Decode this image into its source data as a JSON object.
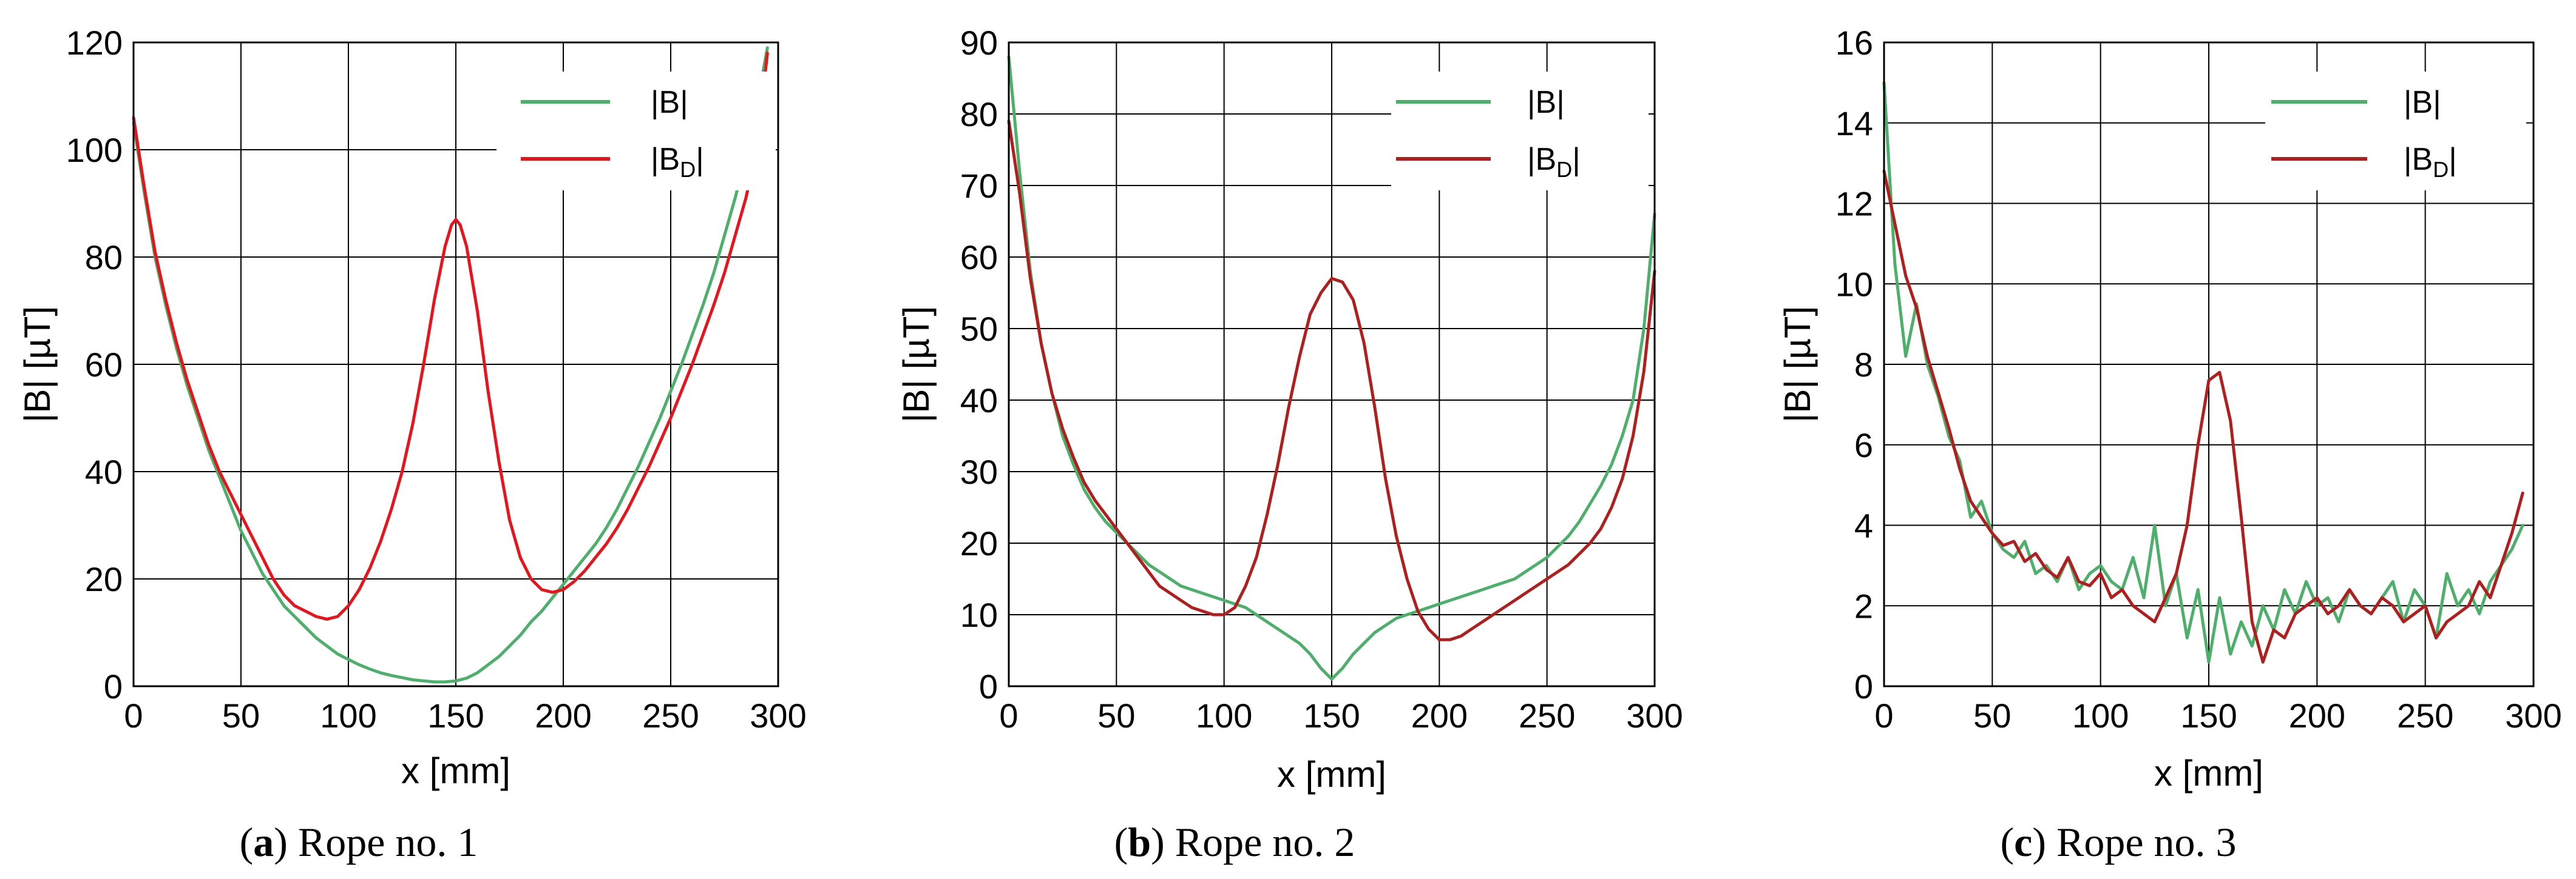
{
  "chart_data": [
    {
      "type": "line",
      "panel_label": "a",
      "caption": "Rope no. 1",
      "xlabel": "x [mm]",
      "ylabel": "|B| [µT]",
      "xlim": [
        0,
        300
      ],
      "ylim": [
        0,
        120
      ],
      "xticks": [
        0,
        50,
        100,
        150,
        200,
        250,
        300
      ],
      "yticks": [
        0,
        20,
        40,
        60,
        80,
        100,
        120
      ],
      "grid": true,
      "legend_position": "top-right",
      "series": [
        {
          "name": "|B|",
          "legend_main": "|B|",
          "legend_sub": "",
          "color": "#4caf6a",
          "x": [
            0,
            5,
            10,
            15,
            20,
            25,
            30,
            35,
            40,
            45,
            50,
            55,
            60,
            65,
            70,
            75,
            80,
            85,
            90,
            95,
            100,
            105,
            110,
            115,
            120,
            125,
            130,
            135,
            140,
            145,
            150,
            155,
            160,
            165,
            170,
            175,
            180,
            185,
            190,
            195,
            200,
            205,
            210,
            215,
            220,
            225,
            230,
            235,
            240,
            245,
            250,
            255,
            260,
            265,
            270,
            275,
            280,
            285,
            290,
            295
          ],
          "y": [
            105,
            92,
            80,
            71,
            63,
            56,
            50,
            44,
            39,
            34,
            29,
            25,
            21,
            18,
            15,
            13,
            11,
            9,
            7.5,
            6,
            5,
            4,
            3.2,
            2.5,
            2,
            1.6,
            1.2,
            1,
            0.8,
            0.8,
            1,
            1.5,
            2.5,
            4,
            5.5,
            7.5,
            9.5,
            12,
            14,
            16.5,
            19,
            21.5,
            24,
            26.5,
            29.5,
            33,
            37,
            41,
            45.5,
            50,
            55,
            60,
            65.5,
            71,
            77,
            84,
            91,
            99,
            108,
            119
          ]
        },
        {
          "name": "|B_D|",
          "legend_main": "|B",
          "legend_sub": "D",
          "color": "#e8141c",
          "x": [
            0,
            5,
            10,
            15,
            20,
            25,
            30,
            35,
            40,
            45,
            50,
            55,
            60,
            65,
            70,
            75,
            80,
            85,
            90,
            95,
            100,
            105,
            110,
            115,
            120,
            125,
            130,
            135,
            140,
            145,
            148,
            150,
            152,
            155,
            160,
            165,
            170,
            175,
            180,
            185,
            190,
            195,
            200,
            205,
            210,
            215,
            220,
            225,
            230,
            235,
            240,
            245,
            250,
            255,
            260,
            265,
            270,
            275,
            280,
            285,
            290,
            295
          ],
          "y": [
            106,
            93,
            81,
            72,
            64,
            57,
            51,
            45,
            40,
            36,
            32,
            28,
            24,
            20,
            17,
            15,
            14,
            13,
            12.5,
            13,
            15,
            18,
            22,
            27,
            33,
            40,
            49,
            60,
            72,
            82,
            86,
            87,
            86,
            82,
            70,
            55,
            42,
            31,
            24,
            20,
            18,
            17.5,
            18,
            19.5,
            21.5,
            24,
            26.5,
            29.5,
            33,
            37,
            41,
            45.5,
            50,
            55,
            60,
            65.5,
            71,
            77,
            84,
            91,
            100,
            118
          ]
        }
      ]
    },
    {
      "type": "line",
      "panel_label": "b",
      "caption": "Rope no. 2",
      "xlabel": "x [mm]",
      "ylabel": "|B| [µT]",
      "xlim": [
        0,
        300
      ],
      "ylim": [
        0,
        90
      ],
      "xticks": [
        0,
        50,
        100,
        150,
        200,
        250,
        300
      ],
      "yticks": [
        0,
        10,
        20,
        30,
        40,
        50,
        60,
        70,
        80,
        90
      ],
      "grid": true,
      "legend_position": "top-right",
      "series": [
        {
          "name": "|B|",
          "legend_main": "|B|",
          "legend_sub": "",
          "color": "#4caf6a",
          "x": [
            0,
            5,
            10,
            15,
            20,
            25,
            30,
            35,
            40,
            45,
            50,
            55,
            60,
            65,
            70,
            75,
            80,
            85,
            90,
            95,
            100,
            105,
            110,
            115,
            120,
            125,
            130,
            135,
            140,
            145,
            150,
            155,
            160,
            165,
            170,
            175,
            180,
            185,
            190,
            195,
            200,
            205,
            210,
            215,
            220,
            225,
            230,
            235,
            240,
            245,
            250,
            255,
            260,
            265,
            270,
            275,
            280,
            285,
            290,
            295,
            300
          ],
          "y": [
            88,
            72,
            58,
            48,
            41,
            35,
            31,
            27.5,
            25,
            23,
            21.5,
            20,
            18.5,
            17,
            16,
            15,
            14,
            13.5,
            13,
            12.5,
            12,
            11.5,
            11,
            10,
            9,
            8,
            7,
            6,
            4.5,
            2.5,
            1,
            2.5,
            4.5,
            6,
            7.5,
            8.5,
            9.5,
            10,
            10.5,
            11,
            11.5,
            12,
            12.5,
            13,
            13.5,
            14,
            14.5,
            15,
            16,
            17,
            18,
            19.5,
            21,
            23,
            25.5,
            28,
            31,
            35,
            40,
            50,
            66
          ]
        },
        {
          "name": "|B_D|",
          "legend_main": "|B",
          "legend_sub": "D",
          "color": "#b01e1e",
          "x": [
            0,
            5,
            10,
            15,
            20,
            25,
            30,
            35,
            40,
            45,
            50,
            55,
            60,
            65,
            70,
            75,
            80,
            85,
            90,
            95,
            100,
            105,
            110,
            115,
            120,
            125,
            130,
            135,
            140,
            145,
            150,
            155,
            160,
            165,
            170,
            175,
            180,
            185,
            190,
            195,
            200,
            205,
            210,
            215,
            220,
            225,
            230,
            235,
            240,
            245,
            250,
            255,
            260,
            265,
            270,
            275,
            280,
            285,
            290,
            295,
            300
          ],
          "y": [
            79,
            69,
            57,
            48,
            41,
            36,
            32,
            28.5,
            26,
            24,
            22,
            20,
            18,
            16,
            14,
            13,
            12,
            11,
            10.5,
            10,
            10,
            11,
            14,
            18,
            24,
            31,
            39,
            46,
            52,
            55,
            57,
            56.5,
            54,
            48,
            39,
            29,
            21,
            15,
            10.5,
            8,
            6.5,
            6.5,
            7,
            8,
            9,
            10,
            11,
            12,
            13,
            14,
            15,
            16,
            17,
            18.5,
            20,
            22,
            25,
            29,
            35,
            44,
            58
          ]
        }
      ]
    },
    {
      "type": "line",
      "panel_label": "c",
      "caption": "Rope no. 3",
      "xlabel": "x [mm]",
      "ylabel": "|B| [µT]",
      "xlim": [
        0,
        300
      ],
      "ylim": [
        0,
        16
      ],
      "xticks": [
        0,
        50,
        100,
        150,
        200,
        250,
        300
      ],
      "yticks": [
        0,
        2,
        4,
        6,
        8,
        10,
        12,
        14,
        16
      ],
      "grid": true,
      "legend_position": "top-right",
      "series": [
        {
          "name": "|B|",
          "legend_main": "|B|",
          "legend_sub": "",
          "color": "#4caf6a",
          "x": [
            0,
            5,
            10,
            15,
            20,
            25,
            30,
            35,
            40,
            45,
            50,
            55,
            60,
            65,
            70,
            75,
            80,
            85,
            90,
            95,
            100,
            105,
            110,
            115,
            120,
            125,
            130,
            135,
            140,
            145,
            150,
            155,
            160,
            165,
            170,
            175,
            180,
            185,
            190,
            195,
            200,
            205,
            210,
            215,
            220,
            225,
            230,
            235,
            240,
            245,
            250,
            255,
            260,
            265,
            270,
            275,
            280,
            285,
            290,
            295
          ],
          "y": [
            15,
            10.5,
            8.2,
            9.5,
            8,
            7.2,
            6.2,
            5.6,
            4.2,
            4.6,
            3.8,
            3.4,
            3.2,
            3.6,
            2.8,
            3.0,
            2.6,
            3.2,
            2.4,
            2.8,
            3.0,
            2.6,
            2.4,
            3.2,
            2.2,
            4.0,
            2.0,
            2.8,
            1.2,
            2.4,
            0.6,
            2.2,
            0.8,
            1.6,
            1.0,
            2.0,
            1.4,
            2.4,
            1.8,
            2.6,
            2.0,
            2.2,
            1.6,
            2.4,
            2.0,
            1.8,
            2.2,
            2.6,
            1.6,
            2.4,
            2.0,
            1.2,
            2.8,
            2.0,
            2.4,
            1.8,
            2.6,
            3.0,
            3.4,
            4.0
          ]
        },
        {
          "name": "|B_D|",
          "legend_main": "|B",
          "legend_sub": "D",
          "color": "#b01e1e",
          "x": [
            0,
            5,
            10,
            15,
            20,
            25,
            30,
            35,
            40,
            45,
            50,
            55,
            60,
            65,
            70,
            75,
            80,
            85,
            90,
            95,
            100,
            105,
            110,
            115,
            120,
            125,
            130,
            135,
            140,
            145,
            150,
            155,
            160,
            165,
            170,
            175,
            180,
            185,
            190,
            195,
            200,
            205,
            210,
            215,
            220,
            225,
            230,
            235,
            240,
            245,
            250,
            255,
            260,
            265,
            270,
            275,
            280,
            285,
            290,
            295
          ],
          "y": [
            12.8,
            11.5,
            10.2,
            9.4,
            8.2,
            7.3,
            6.4,
            5.4,
            4.6,
            4.2,
            3.8,
            3.5,
            3.6,
            3.1,
            3.3,
            2.9,
            2.7,
            3.2,
            2.6,
            2.5,
            2.8,
            2.2,
            2.4,
            2.0,
            1.8,
            1.6,
            2.2,
            2.8,
            4.0,
            6.0,
            7.6,
            7.8,
            6.6,
            4.2,
            1.6,
            0.6,
            1.4,
            1.2,
            1.8,
            2.0,
            2.2,
            1.8,
            2.0,
            2.4,
            2.0,
            1.8,
            2.2,
            2.0,
            1.6,
            1.8,
            2.0,
            1.2,
            1.6,
            1.8,
            2.0,
            2.6,
            2.2,
            3.0,
            3.8,
            4.8
          ]
        }
      ]
    }
  ]
}
